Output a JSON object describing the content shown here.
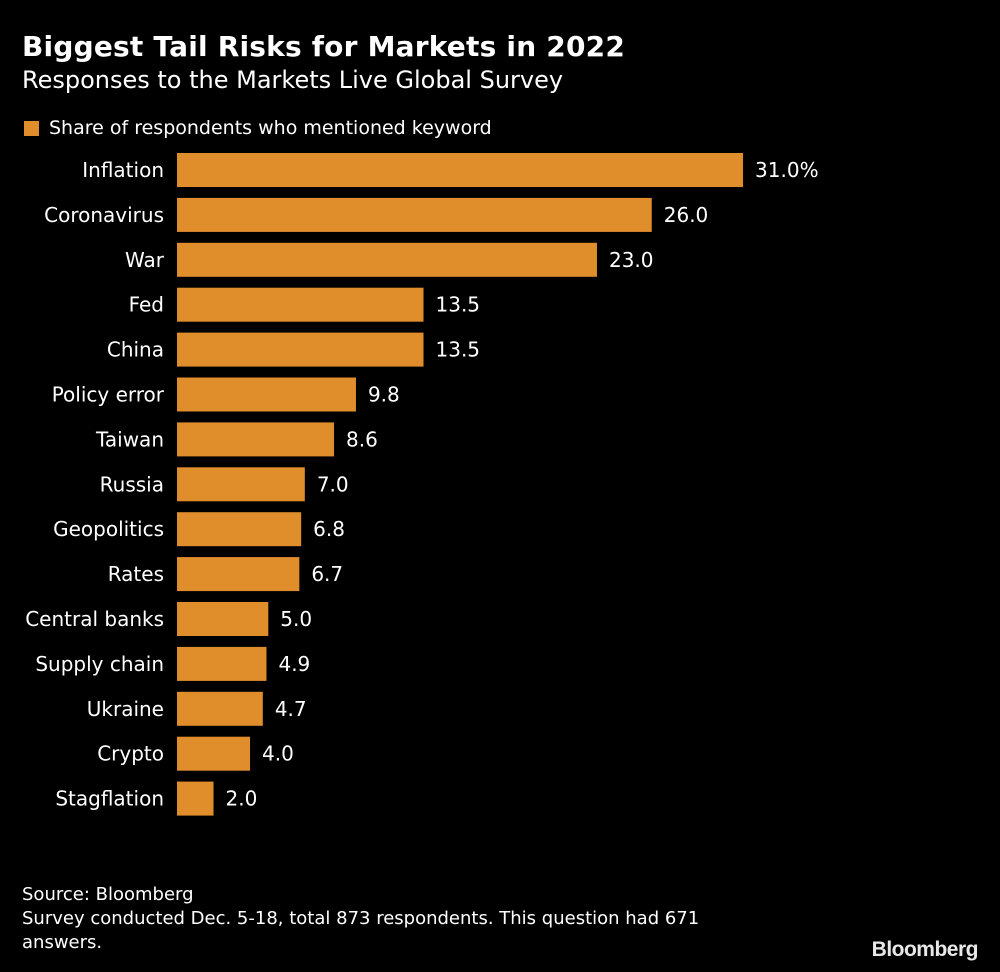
{
  "title": "Biggest Tail Risks for Markets in 2022",
  "subtitle": "Responses to the Markets Live Global Survey",
  "chart_data": {
    "type": "bar",
    "orientation": "horizontal",
    "legend": {
      "label": "Share of respondents who mentioned keyword",
      "placement": "top-left"
    },
    "categories": [
      "Inflation",
      "Coronavirus",
      "War",
      "Fed",
      "China",
      "Policy error",
      "Taiwan",
      "Russia",
      "Geopolitics",
      "Rates",
      "Central banks",
      "Supply chain",
      "Ukraine",
      "Crypto",
      "Stagflation"
    ],
    "values": [
      31.0,
      26.0,
      23.0,
      13.5,
      13.5,
      9.8,
      8.6,
      7.0,
      6.8,
      6.7,
      5.0,
      4.9,
      4.7,
      4.0,
      2.0
    ],
    "data_labels": [
      "31.0%",
      "26.0",
      "23.0",
      "13.5",
      "13.5",
      "9.8",
      "8.6",
      "7.0",
      "6.8",
      "6.7",
      "5.0",
      "4.9",
      "4.7",
      "4.0",
      "2.0"
    ],
    "unit": "%",
    "grid": false,
    "bar_color": "#e08d2c"
  },
  "footer": {
    "source": "Source: Bloomberg",
    "note_line1": "Survey conducted Dec. 5-18, total 873 respondents. This question had 671",
    "note_line2": "answers."
  },
  "logo": "Bloomberg"
}
